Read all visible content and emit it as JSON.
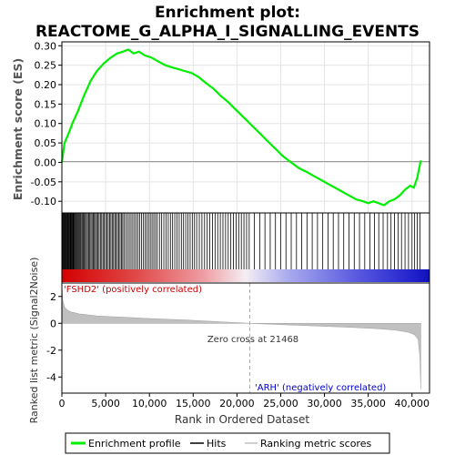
{
  "chart_data": {
    "type": "line",
    "title_line1": "Enrichment plot:",
    "title_line2": "REACTOME_G_ALPHA_I_SIGNALLING_EVENTS",
    "xlabel": "Rank in Ordered Dataset",
    "top_panel": {
      "ylabel": "Enrichment score (ES)",
      "ylim": [
        -0.13,
        0.31
      ],
      "yticks": [
        -0.1,
        -0.05,
        0.0,
        0.05,
        0.1,
        0.15,
        0.2,
        0.25,
        0.3
      ],
      "ytick_labels": [
        "-0.10",
        "-0.05",
        "0.00",
        "0.05",
        "0.10",
        "0.15",
        "0.20",
        "0.25",
        "0.30"
      ],
      "grid": true,
      "series": [
        {
          "name": "Enrichment profile",
          "color": "#00ee00",
          "x": [
            0,
            300,
            700,
            1200,
            1800,
            2500,
            3300,
            4000,
            4800,
            5600,
            6300,
            7000,
            7600,
            8200,
            8800,
            9500,
            10200,
            11000,
            11800,
            12500,
            13300,
            14000,
            14800,
            15600,
            16400,
            17300,
            18200,
            19000,
            19900,
            20800,
            21700,
            22600,
            23500,
            24400,
            25300,
            26200,
            27100,
            28000,
            28800,
            29600,
            30400,
            31200,
            32000,
            32800,
            33600,
            34400,
            35000,
            35600,
            36200,
            36800,
            37400,
            38000,
            38600,
            39200,
            39800,
            40200,
            40600,
            41000
          ],
          "y": [
            0.0,
            0.05,
            0.07,
            0.1,
            0.13,
            0.17,
            0.21,
            0.235,
            0.255,
            0.27,
            0.28,
            0.285,
            0.29,
            0.28,
            0.285,
            0.275,
            0.27,
            0.26,
            0.25,
            0.245,
            0.24,
            0.235,
            0.23,
            0.22,
            0.205,
            0.19,
            0.17,
            0.155,
            0.135,
            0.115,
            0.095,
            0.075,
            0.055,
            0.035,
            0.015,
            0.0,
            -0.015,
            -0.025,
            -0.035,
            -0.045,
            -0.055,
            -0.065,
            -0.075,
            -0.085,
            -0.095,
            -0.1,
            -0.105,
            -0.1,
            -0.105,
            -0.11,
            -0.1,
            -0.095,
            -0.085,
            -0.07,
            -0.06,
            -0.065,
            -0.04,
            0.005
          ]
        }
      ]
    },
    "hits_panel": {
      "name": "Hits",
      "color": "#000000",
      "hit_ranks": [
        60,
        130,
        210,
        280,
        340,
        420,
        500,
        580,
        650,
        720,
        800,
        880,
        950,
        1030,
        1100,
        1180,
        1260,
        1340,
        1420,
        1500,
        1600,
        1700,
        1800,
        1900,
        2000,
        2100,
        2200,
        2320,
        2440,
        2560,
        2680,
        2800,
        2930,
        3060,
        3190,
        3320,
        3450,
        3580,
        3710,
        3840,
        3970,
        4100,
        4250,
        4400,
        4550,
        4700,
        4850,
        5000,
        5150,
        5300,
        5450,
        5600,
        5750,
        5900,
        6050,
        6200,
        6350,
        6500,
        6650,
        6800,
        6950,
        7100,
        7300,
        7500,
        7700,
        7900,
        8100,
        8300,
        8500,
        8700,
        8900,
        9100,
        9300,
        9500,
        9700,
        9900,
        10100,
        10300,
        10500,
        10700,
        10900,
        11150,
        11400,
        11650,
        11900,
        12150,
        12400,
        12650,
        12900,
        13150,
        13400,
        13650,
        13900,
        14150,
        14400,
        14650,
        14900,
        15150,
        15400,
        15700,
        16000,
        16300,
        16600,
        16900,
        17200,
        17500,
        17800,
        18100,
        18400,
        18700,
        19000,
        19300,
        19600,
        19900,
        20200,
        20500,
        20800,
        21100,
        21400,
        22000,
        22600,
        23200,
        23800,
        24400,
        25000,
        25600,
        26200,
        26800,
        27400,
        28000,
        28600,
        29200,
        29800,
        30400,
        31000,
        31600,
        32200,
        32800,
        33400,
        34000,
        34600,
        35200,
        35700,
        36200,
        36700,
        37200,
        37600,
        38000,
        38400,
        38800,
        39200,
        39600,
        40000,
        40300,
        40600,
        40900
      ]
    },
    "ranked_metric_panel": {
      "name": "Ranking metric scores",
      "ylabel": "Ranked list metric (Signal2Noise)",
      "ylim": [
        -5.2,
        3.0
      ],
      "yticks": [
        -4,
        -2,
        0,
        2
      ],
      "ytick_labels": [
        "-4",
        "-2",
        "0",
        "2"
      ],
      "color": "#c0c0c0",
      "x": [
        0,
        100,
        300,
        600,
        1000,
        2000,
        4000,
        7000,
        10000,
        14000,
        18000,
        21468,
        25000,
        29000,
        33000,
        36000,
        38000,
        39500,
        40300,
        40700,
        40900,
        41000
      ],
      "y": [
        2.9,
        1.7,
        1.2,
        1.0,
        0.85,
        0.7,
        0.55,
        0.45,
        0.35,
        0.25,
        0.12,
        0.0,
        -0.1,
        -0.2,
        -0.3,
        -0.4,
        -0.5,
        -0.65,
        -0.85,
        -1.2,
        -2.5,
        -4.9
      ]
    },
    "xticks": [
      0,
      5000,
      10000,
      15000,
      20000,
      25000,
      30000,
      35000,
      40000
    ],
    "xtick_labels": [
      "0",
      "5,000",
      "10,000",
      "15,000",
      "20,000",
      "25,000",
      "30,000",
      "35,000",
      "40,000"
    ],
    "xlim": [
      0,
      42000
    ],
    "zero_cross": 21468,
    "zero_cross_label": "Zero cross at 21468",
    "positive_label": "'FSHD2' (positively correlated)",
    "negative_label": "'ARH' (negatively correlated)",
    "legend": {
      "placement": "bottom",
      "entries": [
        "Enrichment profile",
        "Hits",
        "Ranking metric scores"
      ]
    }
  }
}
